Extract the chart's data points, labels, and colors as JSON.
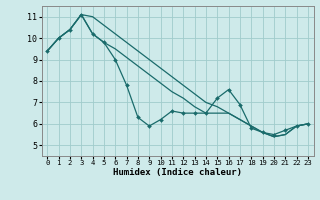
{
  "xlabel": "Humidex (Indice chaleur)",
  "xlim": [
    -0.5,
    23.5
  ],
  "ylim": [
    4.5,
    11.5
  ],
  "yticks": [
    5,
    6,
    7,
    8,
    9,
    10,
    11
  ],
  "xticks": [
    0,
    1,
    2,
    3,
    4,
    5,
    6,
    7,
    8,
    9,
    10,
    11,
    12,
    13,
    14,
    15,
    16,
    17,
    18,
    19,
    20,
    21,
    22,
    23
  ],
  "bg_color": "#ceeaea",
  "grid_color": "#a0cccc",
  "line_color": "#1a6b6b",
  "line_jagged": [
    9.4,
    10.0,
    10.4,
    11.1,
    10.2,
    9.8,
    9.0,
    7.8,
    6.3,
    5.9,
    6.2,
    6.6,
    6.5,
    6.5,
    6.5,
    7.2,
    7.6,
    6.9,
    5.8,
    5.6,
    5.5,
    5.7,
    5.9,
    6.0
  ],
  "line_upper": [
    9.4,
    10.0,
    10.4,
    11.1,
    11.0,
    10.6,
    10.2,
    9.8,
    9.4,
    9.0,
    8.6,
    8.2,
    7.8,
    7.4,
    7.0,
    6.8,
    6.5,
    6.2,
    5.9,
    5.6,
    5.4,
    5.5,
    5.9,
    6.0
  ],
  "line_lower": [
    9.4,
    10.0,
    10.4,
    11.1,
    10.2,
    9.8,
    9.5,
    9.1,
    8.7,
    8.3,
    7.9,
    7.5,
    7.2,
    6.8,
    6.5,
    6.5,
    6.5,
    6.2,
    5.9,
    5.6,
    5.4,
    5.5,
    5.9,
    6.0
  ]
}
